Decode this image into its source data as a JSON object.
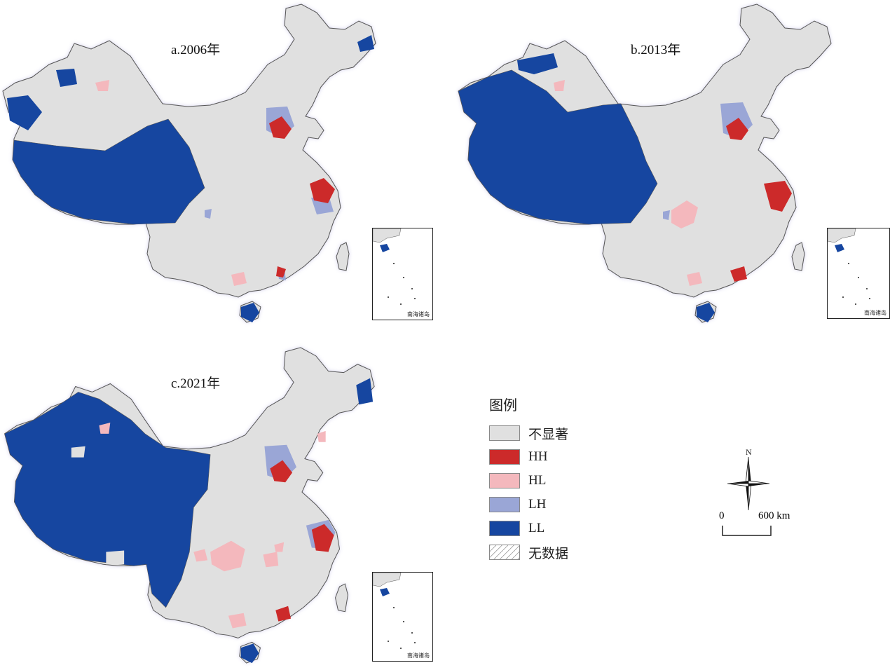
{
  "panels": [
    {
      "title": "a.2006年",
      "inset_label": "南海诸岛"
    },
    {
      "title": "b.2013年",
      "inset_label": "南海诸岛"
    },
    {
      "title": "c.2021年",
      "inset_label": "南海诸岛"
    }
  ],
  "legend": {
    "title": "图例",
    "items": [
      {
        "label": "不显著",
        "color": "#e0e0e0"
      },
      {
        "label": "HH",
        "color": "#cc2a2a"
      },
      {
        "label": "HL",
        "color": "#f4b8bd"
      },
      {
        "label": "LH",
        "color": "#9aa6d6"
      },
      {
        "label": "LL",
        "color": "#1646a0"
      },
      {
        "label": "无数据",
        "color": "#ffffff",
        "pattern": "hatch"
      }
    ]
  },
  "compass": {
    "label": "N"
  },
  "scale_bar": {
    "zero": "0",
    "max": "600 km"
  },
  "colors": {
    "not_significant": "#e0e0e0",
    "HH": "#cc2a2a",
    "HL": "#f4b8bd",
    "LH": "#9aa6d6",
    "LL": "#1646a0",
    "border_glow": "#c7c4e6",
    "coast": "#39a8e0"
  }
}
